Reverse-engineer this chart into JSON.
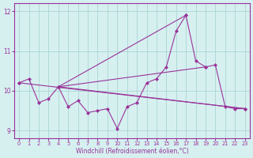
{
  "xlabel": "Windchill (Refroidissement éolien,°C)",
  "ylabel": "",
  "bg_color": "#d6f0f0",
  "grid_color": "#b0d8d8",
  "line_color": "#993399",
  "marker_color": "#993399",
  "xlim": [
    -0.5,
    23.5
  ],
  "ylim": [
    8.8,
    12.2
  ],
  "yticks": [
    9,
    10,
    11,
    12
  ],
  "xticks": [
    0,
    1,
    2,
    3,
    4,
    5,
    6,
    7,
    8,
    9,
    10,
    11,
    12,
    13,
    14,
    15,
    16,
    17,
    18,
    19,
    20,
    21,
    22,
    23
  ],
  "main_x": [
    0,
    1,
    2,
    3,
    4,
    5,
    6,
    7,
    8,
    9,
    10,
    11,
    12,
    13,
    14,
    15,
    16,
    17,
    18,
    19,
    20,
    21,
    22,
    23
  ],
  "main_y": [
    10.2,
    10.3,
    9.7,
    9.8,
    10.1,
    9.6,
    9.75,
    9.45,
    9.5,
    9.55,
    9.05,
    9.6,
    9.7,
    10.2,
    10.3,
    10.6,
    11.5,
    11.9,
    10.75,
    10.6,
    10.65,
    9.6,
    9.55,
    9.55
  ],
  "straight_lines": [
    {
      "x": [
        0,
        23
      ],
      "y": [
        10.2,
        9.55
      ]
    },
    {
      "x": [
        4,
        17
      ],
      "y": [
        10.1,
        11.9
      ]
    },
    {
      "x": [
        4,
        19
      ],
      "y": [
        10.1,
        10.6
      ]
    },
    {
      "x": [
        4,
        23
      ],
      "y": [
        10.1,
        9.55
      ]
    }
  ]
}
